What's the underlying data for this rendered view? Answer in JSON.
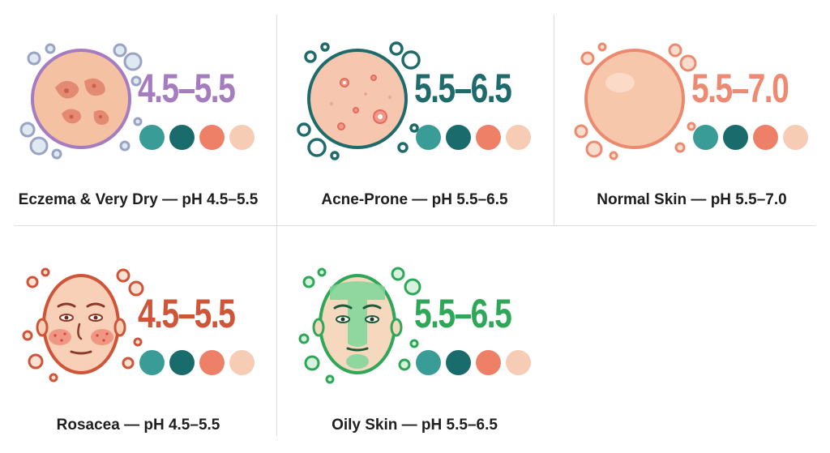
{
  "cards": [
    {
      "ph_range": "4.5–5.5",
      "caption": "Eczema & Very Dry — pH 4.5–5.5",
      "ph_color": "#a47cbf",
      "icon": "eczema-skin-patch-icon",
      "palette": [
        "#3a9c96",
        "#1a6b6b",
        "#ee8068",
        "#f6cdb4"
      ]
    },
    {
      "ph_range": "5.5–6.5",
      "caption": "Acne-Prone — pH 5.5–6.5",
      "ph_color": "#1f6b6b",
      "icon": "acne-skin-patch-icon",
      "palette": [
        "#3a9c96",
        "#1a6b6b",
        "#ee8068",
        "#f6cdb4"
      ]
    },
    {
      "ph_range": "5.5–7.0",
      "caption": "Normal Skin — pH 5.5–7.0",
      "ph_color": "#ee8a72",
      "icon": "normal-skin-patch-icon",
      "palette": [
        "#3a9c96",
        "#1a6b6b",
        "#ee8068",
        "#f6cdb4"
      ]
    },
    {
      "ph_range": "4.5–5.5",
      "caption": "Rosacea — pH 4.5–5.5",
      "ph_color": "#cf5538",
      "icon": "rosacea-face-icon",
      "palette": [
        "#3a9c96",
        "#1a6b6b",
        "#ee8068",
        "#f6cdb4"
      ]
    },
    {
      "ph_range": "5.5–6.5",
      "caption": "Oily Skin — pH 5.5–6.5",
      "ph_color": "#2ea858",
      "icon": "oily-face-icon",
      "palette": [
        "#3a9c96",
        "#1a6b6b",
        "#ee8068",
        "#f6cdb4"
      ]
    }
  ]
}
